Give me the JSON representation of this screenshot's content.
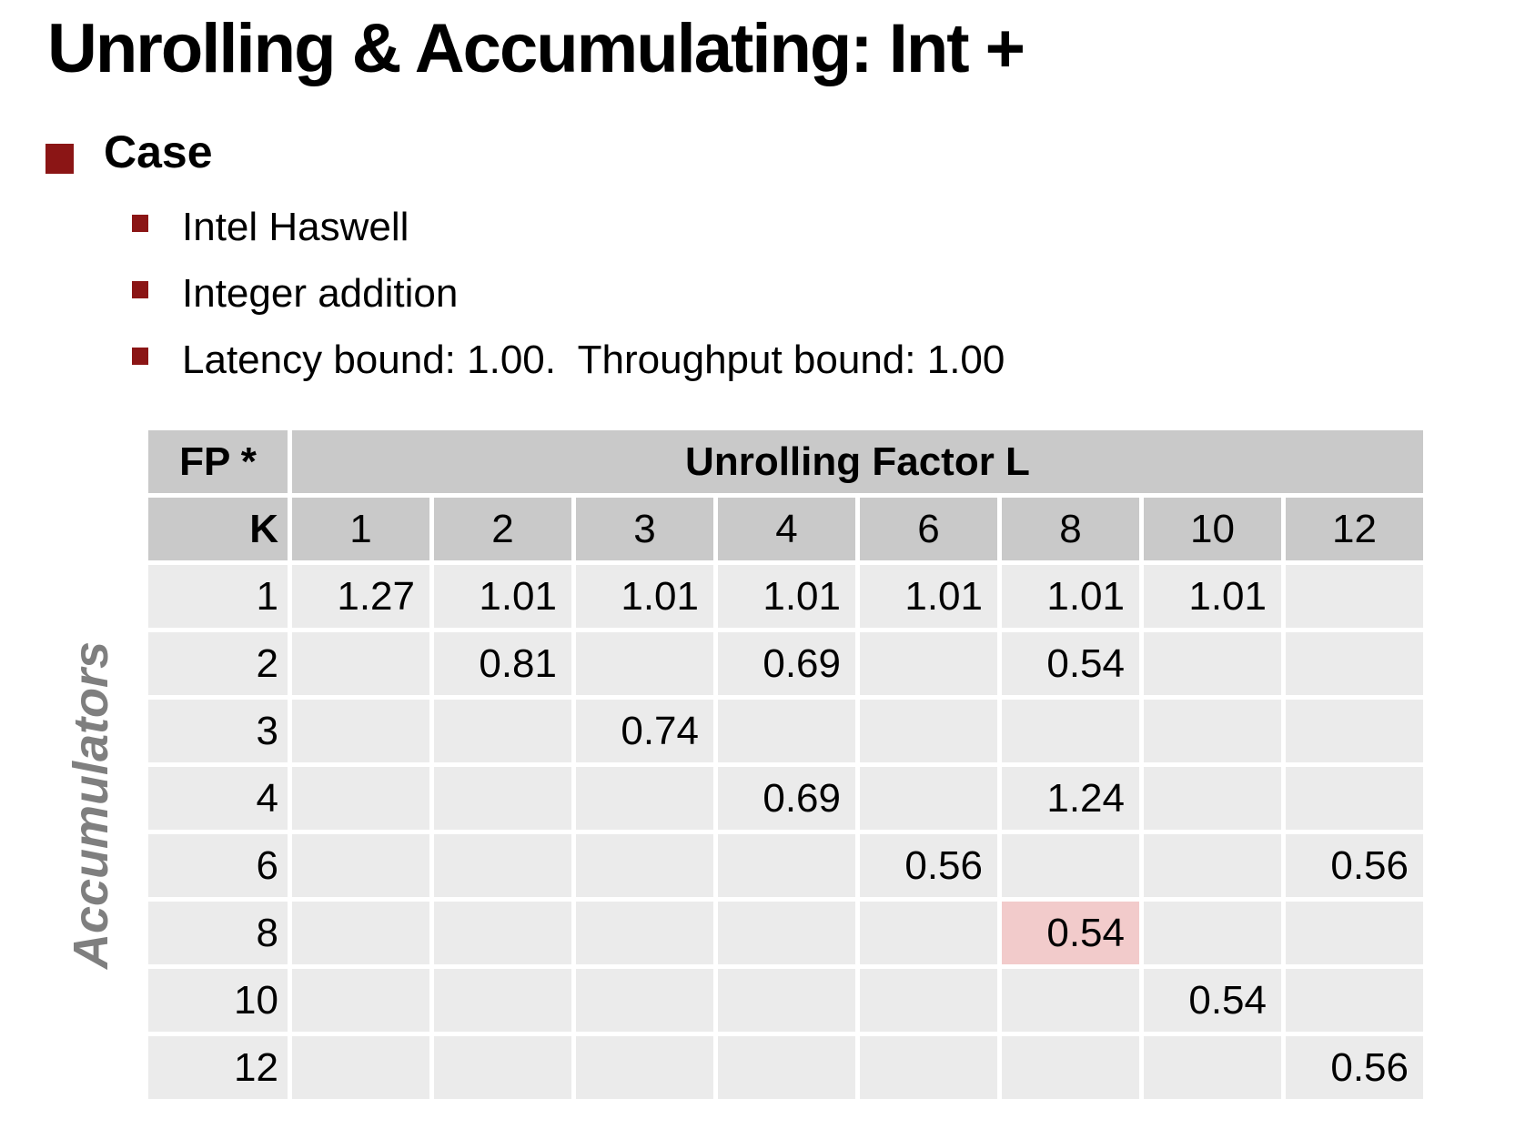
{
  "slide": {
    "title": "Unrolling & Accumulating: Int +",
    "bullet": "Case",
    "sub_bullets": [
      "Intel Haswell",
      "Integer addition",
      "Latency bound: 1.00.  Throughput bound: 1.00"
    ]
  },
  "colors": {
    "bullet_red": "#8B1515",
    "header_gray": "#C9C9C9",
    "cell_gray": "#EBEBEB",
    "highlight_pink": "#F2CBCB",
    "axis_label_gray": "#7F7F7F"
  },
  "table": {
    "corner_label": "FP *",
    "col_group_label": "Unrolling Factor L",
    "row_axis_label": "Accumulators",
    "k_label": "K",
    "col_headers": [
      "1",
      "2",
      "3",
      "4",
      "6",
      "8",
      "10",
      "12"
    ],
    "rows": [
      {
        "k": "1",
        "cells": [
          "1.27",
          "1.01",
          "1.01",
          "1.01",
          "1.01",
          "1.01",
          "1.01",
          ""
        ]
      },
      {
        "k": "2",
        "cells": [
          "",
          "0.81",
          "",
          "0.69",
          "",
          "0.54",
          "",
          ""
        ]
      },
      {
        "k": "3",
        "cells": [
          "",
          "",
          "0.74",
          "",
          "",
          "",
          "",
          ""
        ]
      },
      {
        "k": "4",
        "cells": [
          "",
          "",
          "",
          "0.69",
          "",
          "1.24",
          "",
          ""
        ]
      },
      {
        "k": "6",
        "cells": [
          "",
          "",
          "",
          "",
          "0.56",
          "",
          "",
          "0.56"
        ]
      },
      {
        "k": "8",
        "cells": [
          "",
          "",
          "",
          "",
          "",
          "0.54",
          "",
          ""
        ],
        "highlight": [
          5
        ]
      },
      {
        "k": "10",
        "cells": [
          "",
          "",
          "",
          "",
          "",
          "",
          "0.54",
          ""
        ]
      },
      {
        "k": "12",
        "cells": [
          "",
          "",
          "",
          "",
          "",
          "",
          "",
          "0.56"
        ]
      }
    ]
  },
  "chart_data": {
    "type": "table",
    "title": "Unrolling & Accumulating: Int +",
    "xlabel": "Unrolling Factor L",
    "ylabel": "Accumulators K",
    "x": [
      1,
      2,
      3,
      4,
      6,
      8,
      10,
      12
    ],
    "y": [
      1,
      2,
      3,
      4,
      6,
      8,
      10,
      12
    ],
    "cells": [
      {
        "k": 1,
        "l": 1,
        "value": 1.27
      },
      {
        "k": 1,
        "l": 2,
        "value": 1.01
      },
      {
        "k": 1,
        "l": 3,
        "value": 1.01
      },
      {
        "k": 1,
        "l": 4,
        "value": 1.01
      },
      {
        "k": 1,
        "l": 6,
        "value": 1.01
      },
      {
        "k": 1,
        "l": 8,
        "value": 1.01
      },
      {
        "k": 1,
        "l": 10,
        "value": 1.01
      },
      {
        "k": 2,
        "l": 2,
        "value": 0.81
      },
      {
        "k": 2,
        "l": 4,
        "value": 0.69
      },
      {
        "k": 2,
        "l": 8,
        "value": 0.54
      },
      {
        "k": 3,
        "l": 3,
        "value": 0.74
      },
      {
        "k": 4,
        "l": 4,
        "value": 0.69
      },
      {
        "k": 4,
        "l": 8,
        "value": 1.24
      },
      {
        "k": 6,
        "l": 6,
        "value": 0.56
      },
      {
        "k": 6,
        "l": 12,
        "value": 0.56
      },
      {
        "k": 8,
        "l": 8,
        "value": 0.54,
        "highlighted": true
      },
      {
        "k": 10,
        "l": 10,
        "value": 0.54
      },
      {
        "k": 12,
        "l": 12,
        "value": 0.56
      }
    ]
  }
}
